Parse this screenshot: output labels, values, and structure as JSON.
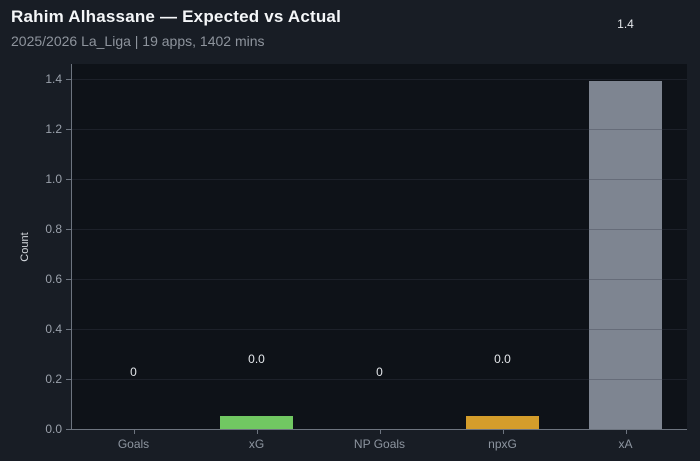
{
  "header": {
    "title": "Rahim Alhassane — Expected vs Actual",
    "subtitle": "2025/2026 La_Liga | 19 apps, 1402 mins"
  },
  "colors": {
    "figure_bg": "#181d25",
    "plot_bg": "#0e1218",
    "title_text": "#f4f6f8",
    "subtitle_text": "#8e949d",
    "ytick_text": "#9aa1ab",
    "xtick_text": "#8d95a0",
    "value_label_text": "#e3e6ea",
    "ylabel_text": "#d3d7dc",
    "spine": "#6d747f",
    "gridline": "rgba(57,64,76,0.35)",
    "bar_green": "#71c862",
    "bar_orange": "#d49d2b",
    "bar_gray": "#7e8591"
  },
  "chart_data": {
    "type": "bar",
    "title": "Rahim Alhassane — Expected vs Actual",
    "subtitle": "2025/2026 La_Liga | 19 apps, 1402 mins",
    "categories": [
      "Goals",
      "xG",
      "NP Goals",
      "npxG",
      "xA"
    ],
    "values": [
      0,
      0.05,
      0,
      0.05,
      1.39
    ],
    "value_labels": [
      "0",
      "0.0",
      "0",
      "0.0",
      "1.4"
    ],
    "bar_colors": [
      null,
      "#71c862",
      null,
      "#d49d2b",
      "#7e8591"
    ],
    "xlabel": "",
    "ylabel": "Count",
    "yticks": [
      0.0,
      0.2,
      0.4,
      0.6,
      0.8,
      1.0,
      1.2,
      1.4
    ],
    "ylim": [
      0,
      1.46
    ],
    "grid": "horizontal gridlines drawn on top of bars",
    "legend": "none"
  }
}
